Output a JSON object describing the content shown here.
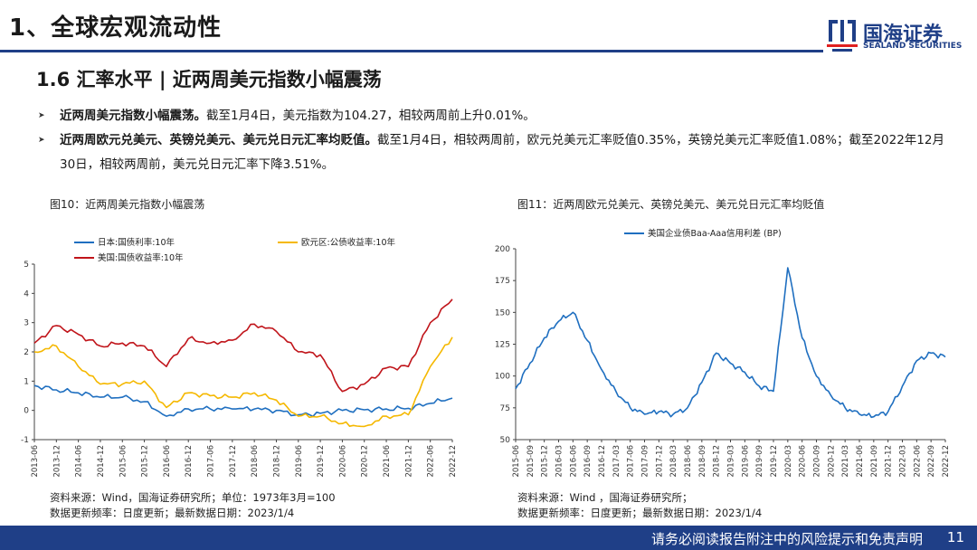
{
  "header": {
    "title": "1、全球宏观流动性"
  },
  "logo": {
    "name_cn": "国海证券",
    "name_en": "SEALAND SECURITIES",
    "color": "#1f3f87"
  },
  "section": {
    "title": "1.6 汇率水平 | 近两周美元指数小幅震荡"
  },
  "bullets": [
    {
      "bold": "近两周美元指数小幅震荡。",
      "text": "截至1月4日，美元指数为104.27，相较两周前上升0.01%。"
    },
    {
      "bold": "近两周欧元兑美元、英镑兑美元、美元兑日元汇率均贬值。",
      "text": "截至1月4日，相较两周前，欧元兑美元汇率贬值0.35%，英镑兑美元汇率贬值1.08%；截至2022年12月30日，相较两周前，美元兑日元汇率下降3.51%。"
    }
  ],
  "figures": [
    {
      "title": "图10：近两周美元指数小幅震荡",
      "note1": "资料来源：Wind，国海证券研究所；单位：1973年3月=100",
      "note2": "数据更新频率：日度更新；最新数据日期：2023/1/4"
    },
    {
      "title": "图11：近两周欧元兑美元、英镑兑美元、美元兑日元汇率均贬值",
      "note1": "资料来源：Wind ，国海证券研究所；",
      "note2": "数据更新频率：日度更新；最新数据日期：2023/1/4"
    }
  ],
  "footer": {
    "text": "请务必阅读报告附注中的风险提示和免责声明",
    "page": "11"
  },
  "chart_data": [
    {
      "type": "line",
      "categories": [
        "2013-06",
        "2013-12",
        "2014-06",
        "2014-12",
        "2015-06",
        "2015-12",
        "2016-06",
        "2016-12",
        "2017-06",
        "2017-12",
        "2018-06",
        "2018-12",
        "2019-06",
        "2019-12",
        "2020-06",
        "2020-12",
        "2021-06",
        "2021-12",
        "2022-06",
        "2022-12"
      ],
      "ylim": [
        -1,
        5
      ],
      "yticks": [
        -1,
        0,
        1,
        2,
        3,
        4,
        5
      ],
      "legend": [
        "日本:国债利率:10年",
        "欧元区:公债收益率:10年",
        "美国:国债收益率:10年"
      ],
      "series": [
        {
          "name": "日本:国债利率:10年",
          "color": "#1f6fc0",
          "values": [
            0.85,
            0.7,
            0.6,
            0.45,
            0.45,
            0.3,
            -0.2,
            0.05,
            0.05,
            0.05,
            0.05,
            0.0,
            -0.15,
            -0.1,
            0.0,
            0.02,
            0.05,
            0.07,
            0.24,
            0.42
          ]
        },
        {
          "name": "欧元区:公债收益率:10年",
          "color": "#f5b800",
          "values": [
            2.0,
            2.2,
            1.5,
            0.9,
            0.9,
            1.0,
            0.1,
            0.6,
            0.5,
            0.45,
            0.6,
            0.35,
            -0.2,
            -0.2,
            -0.45,
            -0.55,
            -0.2,
            -0.15,
            1.5,
            2.5
          ]
        },
        {
          "name": "美国:国债收益率:10年",
          "color": "#c0141a",
          "values": [
            2.3,
            2.9,
            2.6,
            2.2,
            2.3,
            2.2,
            1.5,
            2.45,
            2.3,
            2.4,
            2.95,
            2.7,
            2.0,
            1.9,
            0.65,
            0.9,
            1.45,
            1.5,
            3.0,
            3.8
          ]
        }
      ]
    },
    {
      "type": "line",
      "categories": [
        "2015-06",
        "2015-09",
        "2015-12",
        "2016-03",
        "2016-06",
        "2016-09",
        "2016-12",
        "2017-03",
        "2017-06",
        "2017-09",
        "2017-12",
        "2018-03",
        "2018-06",
        "2018-09",
        "2018-12",
        "2019-03",
        "2019-06",
        "2019-09",
        "2019-12",
        "2020-03",
        "2020-06",
        "2020-09",
        "2020-12",
        "2021-03",
        "2021-06",
        "2021-09",
        "2021-12",
        "2022-03",
        "2022-06",
        "2022-09",
        "2022-12"
      ],
      "ylim": [
        50,
        200
      ],
      "yticks": [
        50,
        75,
        100,
        125,
        150,
        175,
        200
      ],
      "legend": [
        "美国企业债Baa-Aaa信用利差 (BP)"
      ],
      "series": [
        {
          "name": "美国企业债Baa-Aaa信用利差 (BP)",
          "color": "#1f6fc0",
          "values": [
            90,
            110,
            130,
            143,
            150,
            128,
            105,
            88,
            75,
            70,
            72,
            70,
            75,
            95,
            118,
            110,
            103,
            92,
            88,
            185,
            130,
            100,
            85,
            75,
            70,
            68,
            72,
            92,
            112,
            118,
            115
          ]
        }
      ]
    }
  ]
}
